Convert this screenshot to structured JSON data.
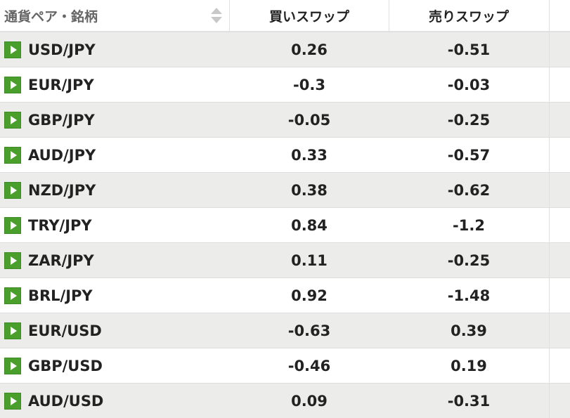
{
  "header": {
    "pair_label": "通貨ペア・銘柄",
    "buy_label": "買いスワップ",
    "sell_label": "売りスワップ"
  },
  "rows": [
    {
      "pair": "USD/JPY",
      "buy": "0.26",
      "sell": "-0.51"
    },
    {
      "pair": "EUR/JPY",
      "buy": "-0.3",
      "sell": "-0.03"
    },
    {
      "pair": "GBP/JPY",
      "buy": "-0.05",
      "sell": "-0.25"
    },
    {
      "pair": "AUD/JPY",
      "buy": "0.33",
      "sell": "-0.57"
    },
    {
      "pair": "NZD/JPY",
      "buy": "0.38",
      "sell": "-0.62"
    },
    {
      "pair": "TRY/JPY",
      "buy": "0.84",
      "sell": "-1.2"
    },
    {
      "pair": "ZAR/JPY",
      "buy": "0.11",
      "sell": "-0.25"
    },
    {
      "pair": "BRL/JPY",
      "buy": "0.92",
      "sell": "-1.48"
    },
    {
      "pair": "EUR/USD",
      "buy": "-0.63",
      "sell": "0.39"
    },
    {
      "pair": "GBP/USD",
      "buy": "-0.46",
      "sell": "0.19"
    },
    {
      "pair": "AUD/USD",
      "buy": "0.09",
      "sell": "-0.31"
    }
  ],
  "icons": {
    "row_icon": "play-icon",
    "sort_icon": "sort-icon"
  },
  "colors": {
    "icon_green": "#4a9e2c",
    "alt_row": "#ececea"
  }
}
